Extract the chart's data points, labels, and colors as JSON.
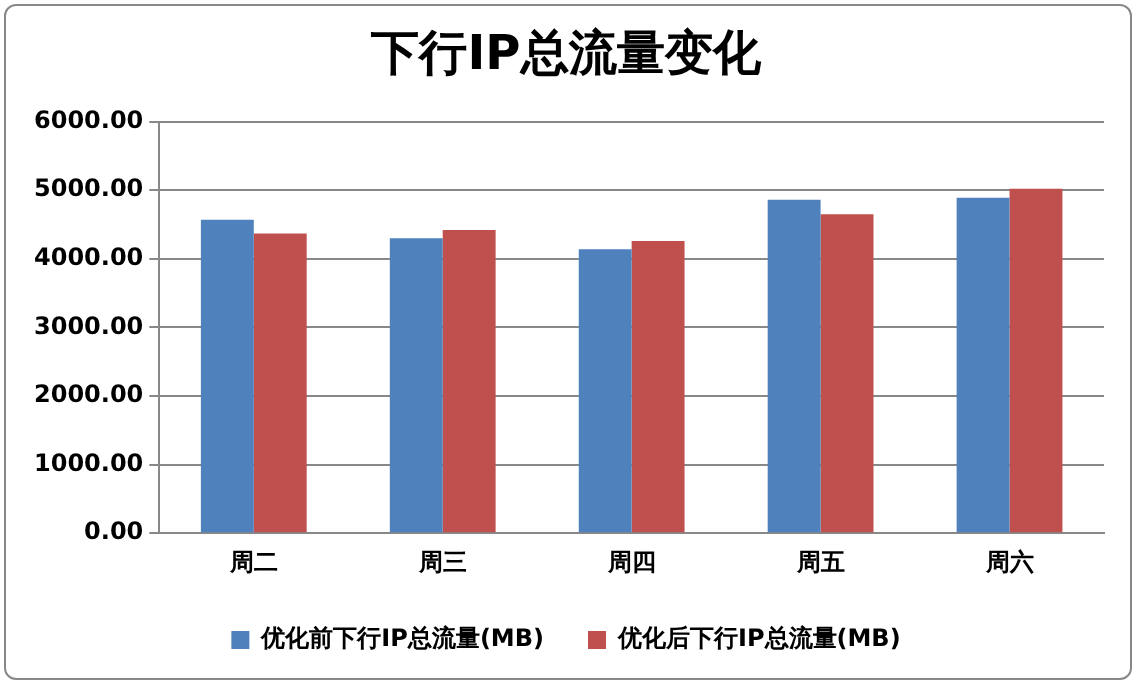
{
  "chart_data": {
    "type": "bar",
    "title": "下行IP总流量变化",
    "categories": [
      "周二",
      "周三",
      "周四",
      "周五",
      "周六"
    ],
    "series": [
      {
        "name": "优化前下行IP总流量(MB)",
        "color": "#4f81bd",
        "values": [
          4570,
          4300,
          4140,
          4860,
          4890
        ]
      },
      {
        "name": "优化后下行IP总流量(MB)",
        "color": "#c0504d",
        "values": [
          4370,
          4420,
          4260,
          4650,
          5020
        ]
      }
    ],
    "ylim": [
      0,
      6000
    ],
    "yticks": [
      {
        "value": 0,
        "label": "0.00"
      },
      {
        "value": 1000,
        "label": "1000.00"
      },
      {
        "value": 2000,
        "label": "2000.00"
      },
      {
        "value": 3000,
        "label": "3000.00"
      },
      {
        "value": 4000,
        "label": "4000.00"
      },
      {
        "value": 5000,
        "label": "5000.00"
      },
      {
        "value": 6000,
        "label": "6000.00"
      }
    ],
    "grid": "y",
    "legend": "bottom"
  }
}
